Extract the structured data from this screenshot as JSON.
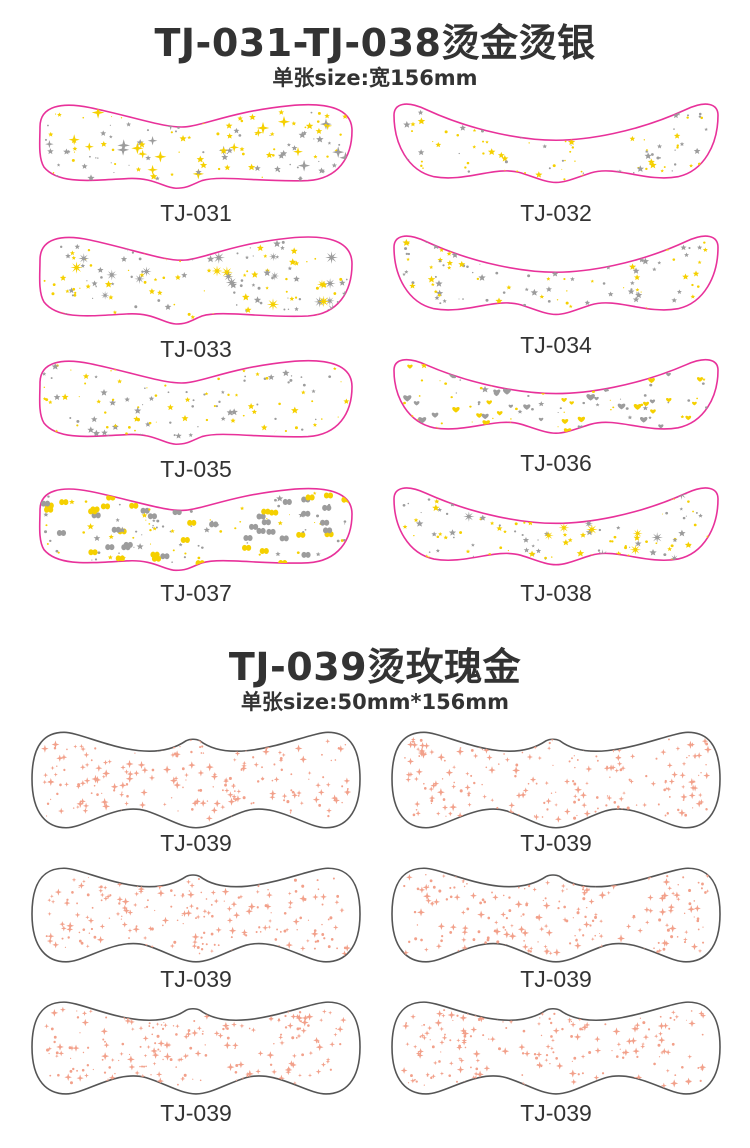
{
  "section_gold": {
    "title": "TJ-031-TJ-038烫金烫银",
    "subtitle": "单张size:宽156mm",
    "outline_color": "#e8319a",
    "gold_color": "#f5d000",
    "silver_color": "#9c9c9c",
    "items": [
      {
        "label": "TJ-031",
        "shape": "wave",
        "motif": "sparkle"
      },
      {
        "label": "TJ-032",
        "shape": "arch",
        "motif": "moon"
      },
      {
        "label": "TJ-033",
        "shape": "wave",
        "motif": "mixed"
      },
      {
        "label": "TJ-034",
        "shape": "arch",
        "motif": "star"
      },
      {
        "label": "TJ-035",
        "shape": "wave",
        "motif": "moon"
      },
      {
        "label": "TJ-036",
        "shape": "arch",
        "motif": "heart"
      },
      {
        "label": "TJ-037",
        "shape": "wave",
        "motif": "butterfly"
      },
      {
        "label": "TJ-038",
        "shape": "arch",
        "motif": "burst"
      }
    ]
  },
  "section_rose": {
    "title": "TJ-039烫玫瑰金",
    "subtitle": "单张size:50mm*156mm",
    "outline_color": "#555555",
    "rose_color": "#f2a08a",
    "items": [
      {
        "label": "TJ-039"
      },
      {
        "label": "TJ-039"
      },
      {
        "label": "TJ-039"
      },
      {
        "label": "TJ-039"
      },
      {
        "label": "TJ-039"
      },
      {
        "label": "TJ-039"
      }
    ]
  }
}
